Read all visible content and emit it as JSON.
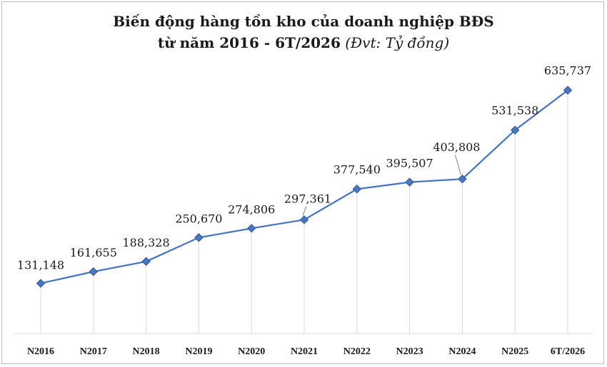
{
  "chart_data": {
    "type": "line",
    "title": "Biến động hàng tồn kho của doanh nghiệp BĐS",
    "subtitle": "từ năm 2016 - 6T/2026",
    "unit_note": "(Đvt: Tỷ đồng)",
    "categories": [
      "N2016",
      "N2017",
      "N2018",
      "N2019",
      "N2020",
      "N2021",
      "N2022",
      "N2023",
      "N2024",
      "N2025",
      "6T/2026"
    ],
    "series": [
      {
        "values": [
          131148,
          161655,
          188328,
          250670,
          274806,
          297361,
          377540,
          395507,
          403808,
          531538,
          635737
        ],
        "labels": [
          "131,148",
          "161,655",
          "188,328",
          "250,670",
          "274,806",
          "297,361",
          "377,540",
          "395,507",
          "403,808",
          "531,538",
          "635,737"
        ]
      }
    ],
    "xlabel": "",
    "ylabel": "",
    "ylim": [
      0,
      700000
    ],
    "grid": false,
    "legend": "none",
    "colors": {
      "line": "#4472c4",
      "marker": "#4a78c0",
      "marker_edge": "#2f5597",
      "axis": "#d9d9d9",
      "dropline": "#d9d9d9",
      "leader": "#7f7f7f"
    }
  }
}
